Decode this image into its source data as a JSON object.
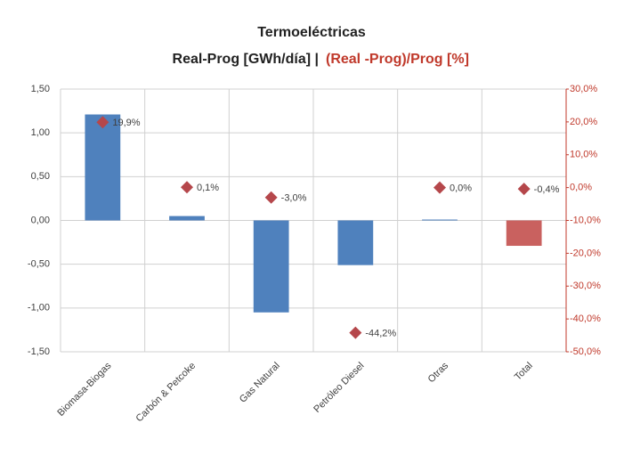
{
  "chart_data": {
    "type": "bar_scatter",
    "title": "Termoeléctricas",
    "subtitle_parts": [
      "Real-Prog [GWh/día]  |",
      "(Real -Prog)/Prog [%]"
    ],
    "categories": [
      "Biomasa-Biogas",
      "Carbón & Petcoke",
      "Gas Natural",
      "Petróleo Diesel",
      "Otras",
      "Total"
    ],
    "series": [
      {
        "type": "bar",
        "values": [
          1.21,
          0.05,
          -1.05,
          -0.51,
          0.01,
          -0.29
        ],
        "colors": [
          "#4f81bd",
          "#4f81bd",
          "#4f81bd",
          "#4f81bd",
          "#4f81bd",
          "#c9615f"
        ]
      },
      {
        "type": "scatter",
        "axis": "y2",
        "values": [
          19.9,
          0.1,
          -3.0,
          -44.2,
          0.0,
          -0.4
        ],
        "value_labels": [
          "19,9%",
          "0,1%",
          "-3,0%",
          "-44,2%",
          "0,0%",
          "-0,4%"
        ],
        "color": "#b5474b"
      }
    ],
    "ylim": [
      -1.5,
      1.5
    ],
    "yticks": [
      {
        "value": 1.5,
        "label": "1,50"
      },
      {
        "value": 1.0,
        "label": "1,00"
      },
      {
        "value": 0.5,
        "label": "0,50"
      },
      {
        "value": 0,
        "label": "0,00"
      },
      {
        "value": -0.5,
        "label": "-0,50"
      },
      {
        "value": -1.0,
        "label": "-1,00"
      },
      {
        "value": -1.5,
        "label": "-1,50"
      }
    ],
    "y2lim": [
      -50,
      30
    ],
    "y2ticks": [
      {
        "value": 30,
        "label": "30,0%"
      },
      {
        "value": 20,
        "label": "20,0%"
      },
      {
        "value": 10,
        "label": "10,0%"
      },
      {
        "value": 0,
        "label": "0,0%"
      },
      {
        "value": -10,
        "label": "-10,0%"
      },
      {
        "value": -20,
        "label": "-20,0%"
      },
      {
        "value": -30,
        "label": "-30,0%"
      },
      {
        "value": -40,
        "label": "-40,0%"
      },
      {
        "value": -50,
        "label": "-50,0%"
      }
    ],
    "grid": true
  }
}
